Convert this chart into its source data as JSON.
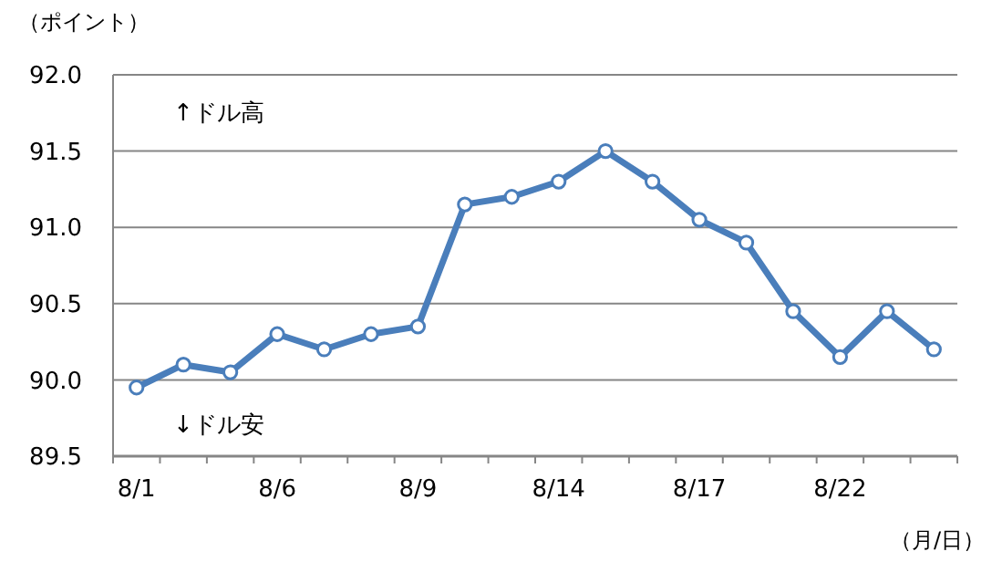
{
  "chart_data": {
    "type": "line",
    "ylabel": "（ポイント）",
    "xlabel": "（月/日）",
    "annotations": [
      "↑ドル高",
      "↓ドル安"
    ],
    "categories": [
      "8/1",
      null,
      null,
      "8/6",
      null,
      null,
      "8/9",
      null,
      null,
      "8/14",
      null,
      null,
      "8/17",
      null,
      null,
      "8/22",
      null,
      null
    ],
    "series": [
      {
        "color": "#4a7ebb",
        "values": [
          89.95,
          90.1,
          90.05,
          90.3,
          90.2,
          90.3,
          90.35,
          91.15,
          91.2,
          91.3,
          91.5,
          91.3,
          91.05,
          90.9,
          90.45,
          90.15,
          90.45,
          90.2
        ]
      }
    ],
    "ylim": [
      89.5,
      92
    ],
    "yticks": [
      {
        "value": 89.5,
        "label": "89.5"
      },
      {
        "value": 90,
        "label": "90.0"
      },
      {
        "value": 90.5,
        "label": "90.5"
      },
      {
        "value": 91,
        "label": "91.0"
      },
      {
        "value": 91.5,
        "label": "91.5"
      },
      {
        "value": 92,
        "label": "92.0"
      }
    ],
    "grid": "y",
    "marker": "circle",
    "line_style": "solid"
  }
}
